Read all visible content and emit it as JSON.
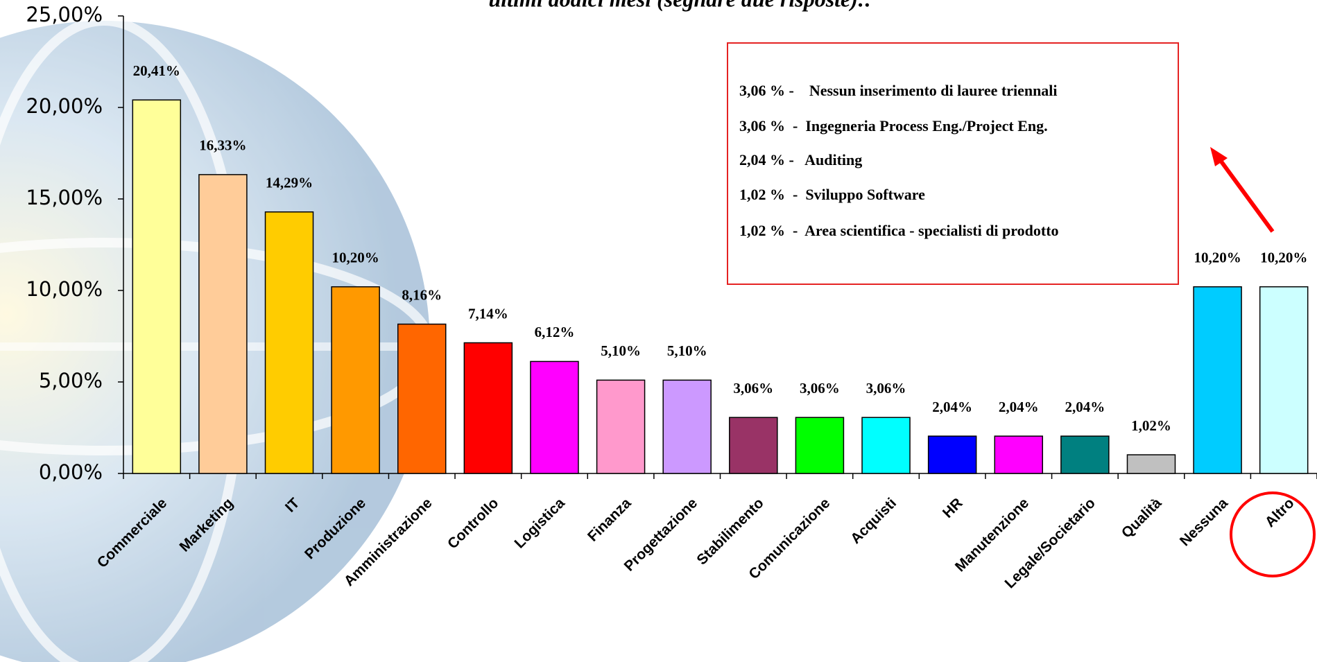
{
  "chart_data": {
    "type": "bar",
    "title": "ultimi dodici mesi (segnare due risposte):.",
    "categories": [
      "Commerciale",
      "Marketing",
      "IT",
      "Produzione",
      "Amministrazione",
      "Controllo",
      "Logistica",
      "Finanza",
      "Progettazione",
      "Stabilimento",
      "Comunicazione",
      "Acquisti",
      "HR",
      "Manutenzione",
      "Legale/Societario",
      "Qualità",
      "Nessuna",
      "Altro"
    ],
    "values": [
      20.41,
      16.33,
      14.29,
      10.2,
      8.16,
      7.14,
      6.12,
      5.1,
      5.1,
      3.06,
      3.06,
      3.06,
      2.04,
      2.04,
      2.04,
      1.02,
      10.2,
      10.2
    ],
    "value_labels": [
      "20,41%",
      "16,33%",
      "14,29%",
      "10,20%",
      "8,16%",
      "7,14%",
      "6,12%",
      "5,10%",
      "5,10%",
      "3,06%",
      "3,06%",
      "3,06%",
      "2,04%",
      "2,04%",
      "2,04%",
      "1,02%",
      "10,20%",
      "10,20%"
    ],
    "colors": [
      "#FFFF99",
      "#FFCC99",
      "#FFCC00",
      "#FF9900",
      "#FF6600",
      "#FF0000",
      "#FF00FF",
      "#FF99CC",
      "#CC99FF",
      "#993366",
      "#00FF00",
      "#00FFFF",
      "#0000FF",
      "#FF00FF",
      "#008080",
      "#C0C0C0",
      "#00CCFF",
      "#CCFFFF"
    ],
    "ylim": [
      0,
      25
    ],
    "yticks": [
      {
        "value": 0,
        "label": "0,00%"
      },
      {
        "value": 5,
        "label": "5,00%"
      },
      {
        "value": 10,
        "label": "10,00%"
      },
      {
        "value": 15,
        "label": "15,00%"
      },
      {
        "value": 20,
        "label": "20,00%"
      },
      {
        "value": 25,
        "label": "25,00%"
      }
    ],
    "annotations": [
      "3,06 % -    Nessun inserimento di lauree triennali",
      "3,06 %  -  Ingegneria Process Eng./Project Eng.",
      "2,04 % -   Auditing",
      "1,02 %  -  Sviluppo Software",
      "1,02 %  -  Area scientifica - specialisti di prodotto"
    ]
  }
}
